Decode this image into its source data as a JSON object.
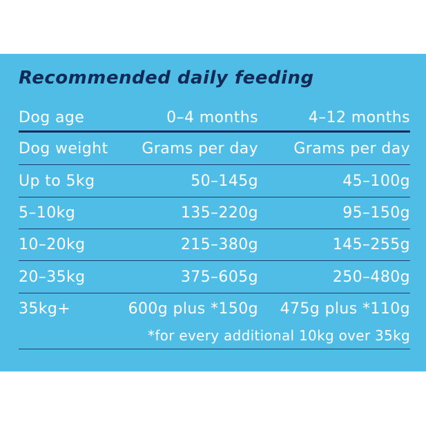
{
  "title": "Recommended daily feeding",
  "header_age": {
    "label": "Dog age",
    "col1": "0–4 months",
    "col2": "4–12 months"
  },
  "header_weight": {
    "label": "Dog weight",
    "col1": "Grams per day",
    "col2": "Grams per day"
  },
  "rows": [
    {
      "weight": "Up to 5kg",
      "col1": "50–145g",
      "col2": "45–100g"
    },
    {
      "weight": "5–10kg",
      "col1": "135–220g",
      "col2": "95–150g"
    },
    {
      "weight": "10–20kg",
      "col1": "215–380g",
      "col2": "145–255g"
    },
    {
      "weight": "20–35kg",
      "col1": "375–605g",
      "col2": "250–480g"
    },
    {
      "weight": "35kg+",
      "col1": "600g plus *150g",
      "col2": "475g plus *110g"
    }
  ],
  "footnote": "*for every additional 10kg over 35kg",
  "colors": {
    "panel": "#4fbde6",
    "title": "#122a56",
    "rule": "#1b3d6b",
    "text": "#ffffff"
  }
}
